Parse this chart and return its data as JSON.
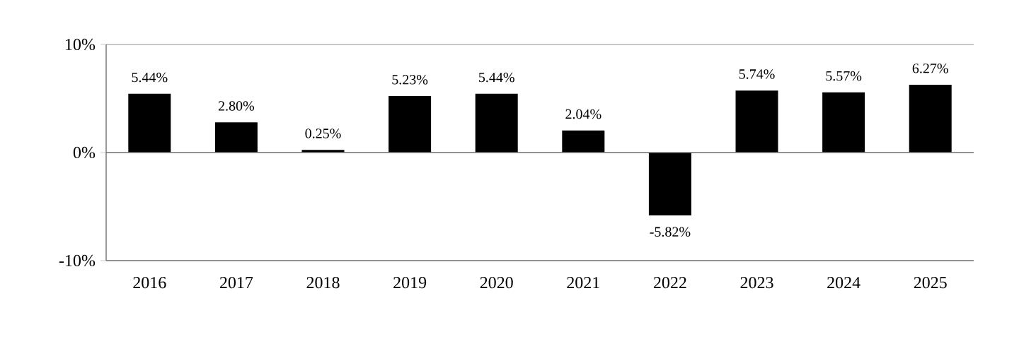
{
  "chart_data": {
    "type": "bar",
    "categories": [
      "2016",
      "2017",
      "2018",
      "2019",
      "2020",
      "2021",
      "2022",
      "2023",
      "2024",
      "2025"
    ],
    "values": [
      5.44,
      2.8,
      0.25,
      5.23,
      5.44,
      2.04,
      -5.82,
      5.74,
      5.57,
      6.27
    ],
    "value_labels": [
      "5.44%",
      "2.80%",
      "0.25%",
      "5.23%",
      "5.44%",
      "2.04%",
      "-5.82%",
      "5.74%",
      "5.57%",
      "6.27%"
    ],
    "color": "#000000",
    "ylim": [
      -10,
      10
    ],
    "yticks": [
      {
        "value": -10,
        "label": "-10%"
      },
      {
        "value": 0,
        "label": "0%"
      },
      {
        "value": 10,
        "label": "10%"
      }
    ],
    "grid": "y"
  }
}
